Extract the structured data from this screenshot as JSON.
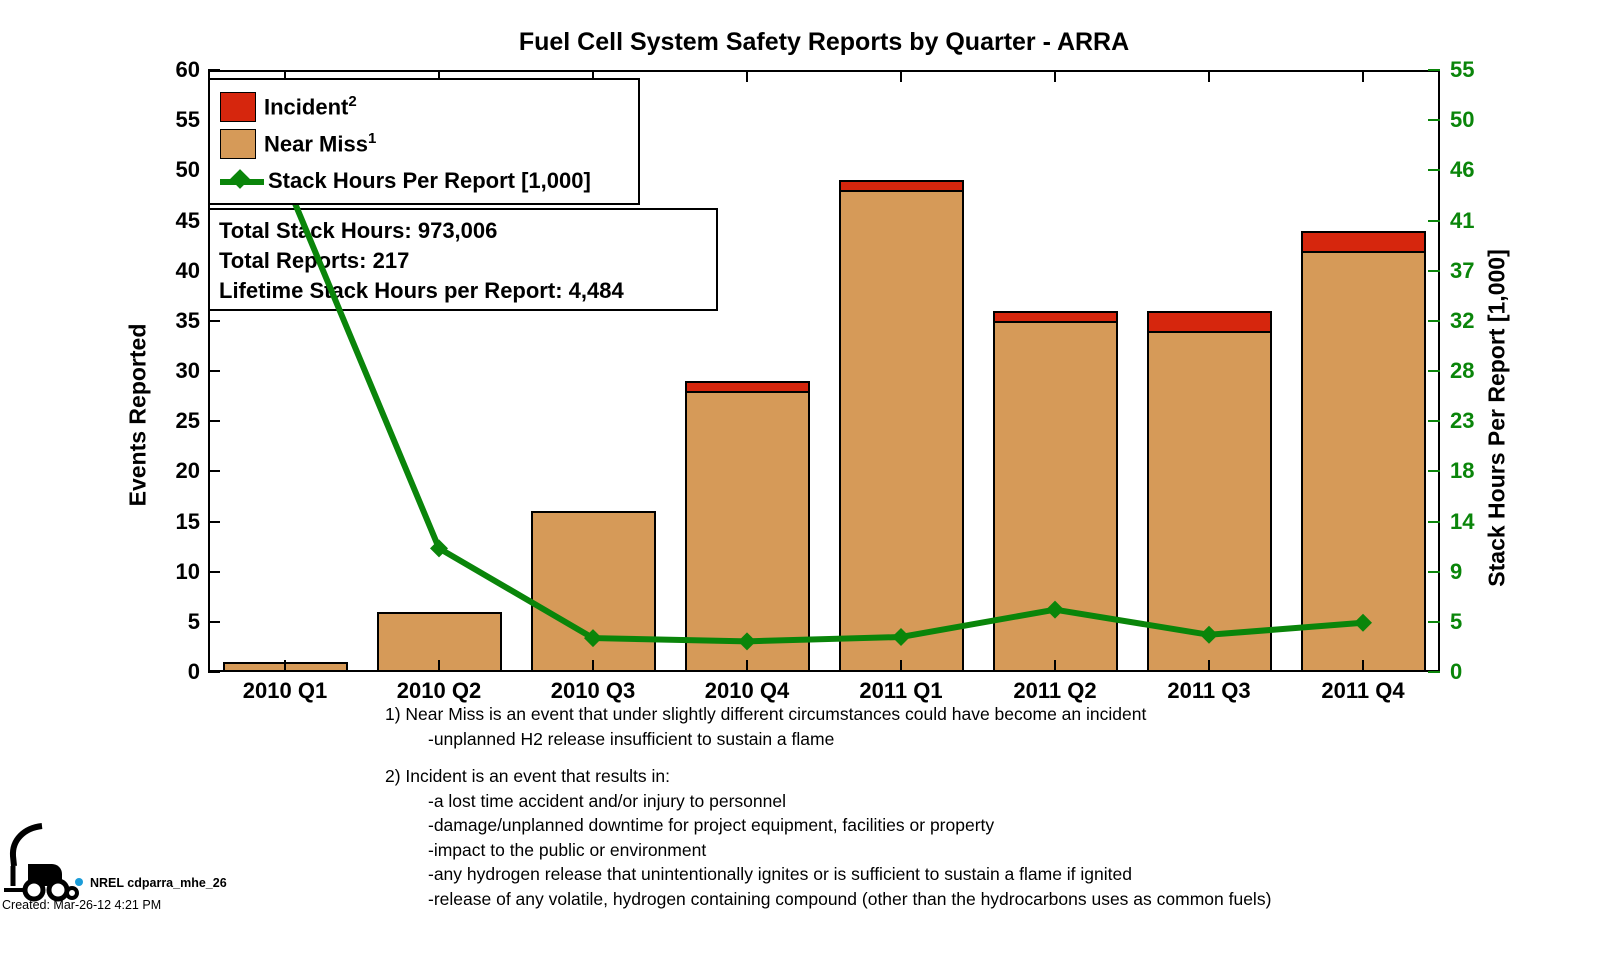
{
  "title": "Fuel Cell System Safety Reports by Quarter - ARRA",
  "axes": {
    "left_label": "Events Reported",
    "right_label": "Stack Hours Per Report [1,000]"
  },
  "legend": [
    {
      "label": "Incident",
      "sup": "2",
      "type": "box",
      "color": "#D6260D"
    },
    {
      "label": "Near Miss",
      "sup": "1",
      "type": "box",
      "color": "#D69A58"
    },
    {
      "label": "Stack Hours Per Report [1,000]",
      "sup": "",
      "type": "line",
      "color": "#0A850A"
    }
  ],
  "stats_box": {
    "line1": "Total Stack Hours: 973,006",
    "line2": "Total Reports: 217",
    "line3": "Lifetime Stack Hours per Report: 4,484"
  },
  "footnotes": {
    "note1": [
      "1) Near Miss is an event that under slightly different circumstances could have become an incident",
      "-unplanned H2 release insufficient to sustain a flame"
    ],
    "note2": [
      "2) Incident is an event that results in:",
      "-a lost time accident and/or injury to personnel",
      "-damage/unplanned downtime for project equipment, facilities or property",
      "-impact to the public or environment",
      "-any hydrogen release that unintentionally ignites or is sufficient to sustain a flame if ignited",
      "-release of any volatile, hydrogen containing compound (other than the hydrocarbons uses as common fuels)"
    ]
  },
  "footer": {
    "logo_text": "NREL cdparra_mhe_26",
    "created": "Created: Mar-26-12  4:21 PM"
  },
  "chart_data": {
    "type": "bar",
    "subtype": "stacked-bars-with-line",
    "title": "Fuel Cell System Safety Reports by Quarter - ARRA",
    "categories": [
      "2010 Q1",
      "2010 Q2",
      "2010 Q3",
      "2010 Q4",
      "2011 Q1",
      "2011 Q2",
      "2011 Q3",
      "2011 Q4"
    ],
    "series": [
      {
        "name": "Near Miss",
        "type": "bar",
        "stack": "events",
        "color": "#D69A58",
        "values": [
          1,
          6,
          16,
          28,
          48,
          35,
          34,
          42
        ]
      },
      {
        "name": "Incident",
        "type": "bar",
        "stack": "events",
        "color": "#D6260D",
        "values": [
          0,
          0,
          0,
          1,
          1,
          1,
          2,
          2
        ]
      },
      {
        "name": "Stack Hours Per Report [1,000]",
        "type": "line",
        "axis": "right",
        "color": "#0A850A",
        "marker": "diamond",
        "values": [
          45,
          11.3,
          3.1,
          2.8,
          3.2,
          5.7,
          3.4,
          4.5
        ]
      }
    ],
    "bar_totals": [
      1,
      6,
      16,
      29,
      49,
      36,
      36,
      44
    ],
    "left_axis": {
      "label": "Events Reported",
      "min": 0,
      "max": 60,
      "ticks": [
        0,
        5,
        10,
        15,
        20,
        25,
        30,
        35,
        40,
        45,
        50,
        55,
        60
      ]
    },
    "right_axis": {
      "label": "Stack Hours Per Report [1,000]",
      "min": 0,
      "max": 55,
      "color": "#0A850A",
      "tick_labels": [
        "0",
        "5",
        "9",
        "14",
        "18",
        "23",
        "28",
        "32",
        "37",
        "41",
        "46",
        "50",
        "55"
      ]
    },
    "legend_position": "upper-left-inside",
    "grid": false,
    "annotations": [
      "Total Stack Hours: 973,006",
      "Total Reports: 217",
      "Lifetime Stack Hours per Report: 4,484"
    ]
  }
}
